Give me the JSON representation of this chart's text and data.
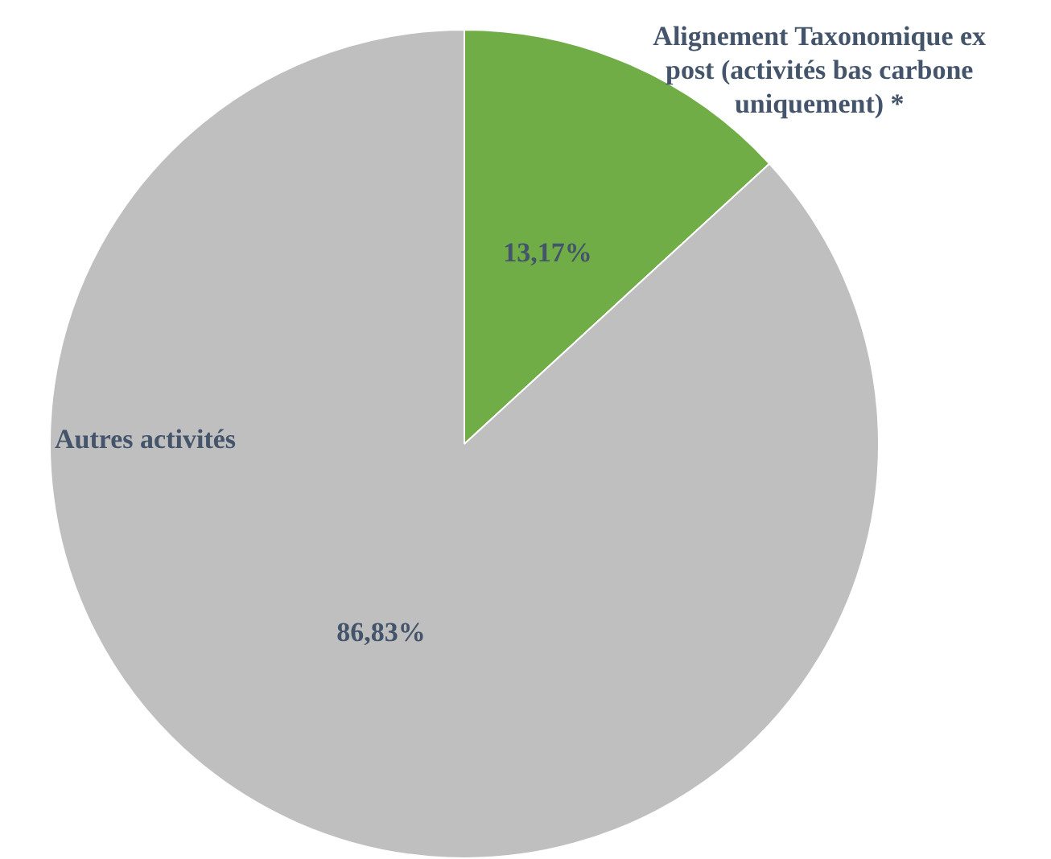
{
  "chart_data": {
    "type": "pie",
    "categories": [
      "Alignement Taxonomique ex post (activités bas carbone uniquement) *",
      "Autres activités"
    ],
    "values": [
      13.17,
      86.83
    ],
    "colors": [
      "#70ad47",
      "#bfbfbf"
    ],
    "value_labels": [
      "13,17%",
      "86,83%"
    ],
    "legend": false
  }
}
